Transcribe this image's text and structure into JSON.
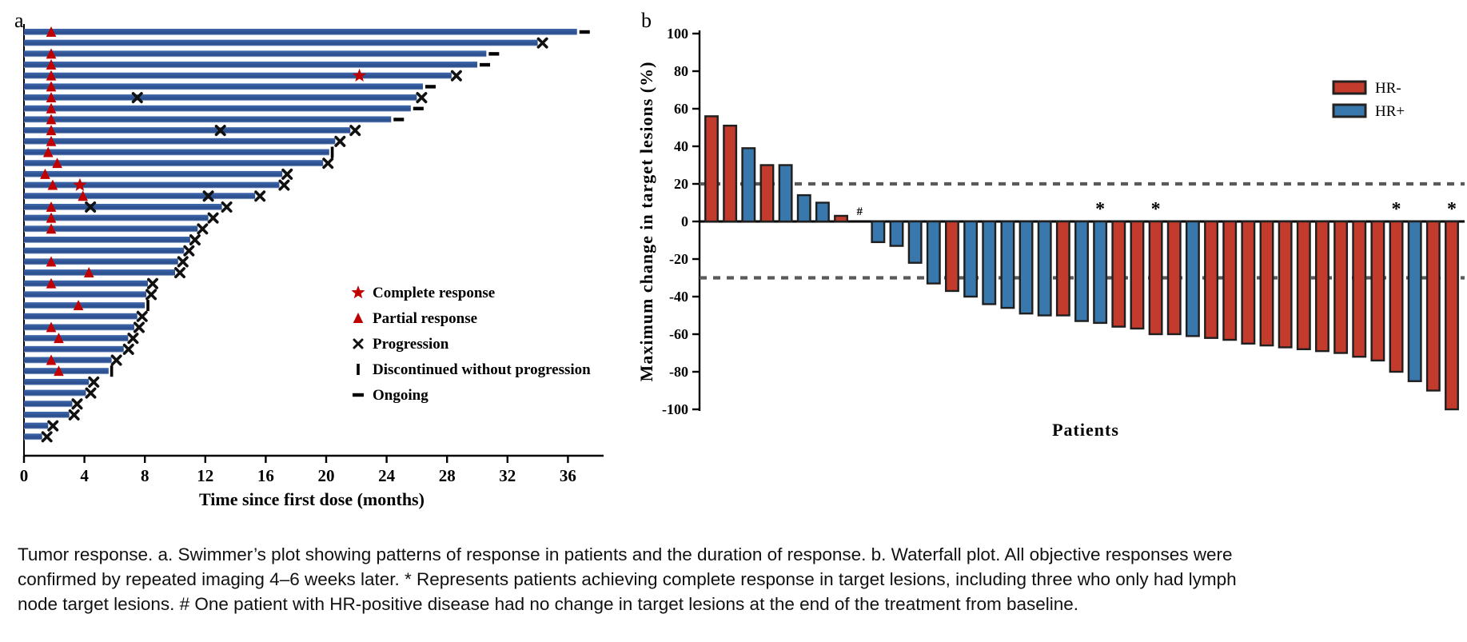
{
  "figure": {
    "panel_a_label": "a",
    "panel_b_label": "b"
  },
  "caption": {
    "text": "Tumor response. a. Swimmer’s plot showing patterns of response in patients and the duration of response. b. Waterfall plot. All objective responses were confirmed by repeated imaging 4–6 weeks later. * Represents patients achieving complete response in target lesions, including three who only had lymph node target lesions. # One patient with HR-positive disease had no change in target lesions at the end of the treatment from baseline."
  },
  "colors": {
    "swimmer_bar_main": "#2d5191",
    "swimmer_bar_light": "#3e68ab",
    "swimmer_bar_bevel": "#cdd8ec",
    "marker_red": "#c00000",
    "marker_black": "#111111",
    "hr_neg_red": "#c23b2c",
    "hr_pos_blue": "#3878ad",
    "bar_stroke": "#1f1f1f",
    "dashed_gray": "#5a5a5a",
    "axis_black": "#000000"
  },
  "chart_data": [
    {
      "type": "bar",
      "name": "swimmer_plot",
      "orientation": "horizontal",
      "xlabel": "Time since first dose (months)",
      "xticks": [
        0,
        4,
        8,
        12,
        16,
        20,
        24,
        28,
        32,
        36
      ],
      "xlim": [
        0,
        38.5
      ],
      "legend": [
        {
          "symbol": "star",
          "label": "Complete response"
        },
        {
          "symbol": "triangle",
          "label": "Partial response"
        },
        {
          "symbol": "x",
          "label": "Progression"
        },
        {
          "symbol": "bar-vertical",
          "label": "Discontinued without progression"
        },
        {
          "symbol": "dash",
          "label": "Ongoing"
        }
      ],
      "bars": [
        {
          "duration": 36.6,
          "end": "ongoing",
          "pr": 1.8,
          "cr": null,
          "x_mid": null
        },
        {
          "duration": 34.0,
          "end": "progression",
          "pr": null,
          "cr": null,
          "x_mid": null
        },
        {
          "duration": 30.6,
          "end": "ongoing",
          "pr": 1.8,
          "cr": null,
          "x_mid": null
        },
        {
          "duration": 30.0,
          "end": "ongoing",
          "pr": 1.8,
          "cr": null,
          "x_mid": null
        },
        {
          "duration": 28.3,
          "end": "progression",
          "pr": 1.8,
          "cr": 22.2,
          "x_mid": null
        },
        {
          "duration": 26.4,
          "end": "ongoing",
          "pr": 1.8,
          "cr": null,
          "x_mid": null
        },
        {
          "duration": 26.0,
          "end": "progression",
          "pr": 1.8,
          "cr": null,
          "x_mid": 7.5
        },
        {
          "duration": 25.6,
          "end": "ongoing",
          "pr": 1.8,
          "cr": null,
          "x_mid": null
        },
        {
          "duration": 24.3,
          "end": "ongoing",
          "pr": 1.8,
          "cr": null,
          "x_mid": null
        },
        {
          "duration": 21.6,
          "end": "progression",
          "pr": 1.8,
          "cr": null,
          "x_mid": 13.0
        },
        {
          "duration": 20.6,
          "end": "progression",
          "pr": 1.8,
          "cr": null,
          "x_mid": null
        },
        {
          "duration": 20.2,
          "end": "discontinued",
          "pr": 1.6,
          "cr": null,
          "x_mid": null
        },
        {
          "duration": 19.8,
          "end": "progression",
          "pr": 2.2,
          "cr": null,
          "x_mid": null
        },
        {
          "duration": 17.1,
          "end": "progression",
          "pr": 1.4,
          "cr": null,
          "x_mid": null
        },
        {
          "duration": 16.9,
          "end": "progression",
          "pr": 1.9,
          "cr": 3.7,
          "x_mid": null
        },
        {
          "duration": 15.3,
          "end": "progression",
          "pr": 3.9,
          "cr": null,
          "x_mid": 12.2
        },
        {
          "duration": 13.1,
          "end": "progression",
          "pr": 1.8,
          "cr": null,
          "x_mid": 4.4
        },
        {
          "duration": 12.2,
          "end": "progression",
          "pr": 1.8,
          "cr": null,
          "x_mid": null
        },
        {
          "duration": 11.5,
          "end": "progression",
          "pr": 1.8,
          "cr": null,
          "x_mid": null
        },
        {
          "duration": 11.0,
          "end": "progression",
          "pr": null,
          "cr": null,
          "x_mid": null
        },
        {
          "duration": 10.6,
          "end": "progression",
          "pr": null,
          "cr": null,
          "x_mid": null
        },
        {
          "duration": 10.2,
          "end": "progression",
          "pr": 1.8,
          "cr": null,
          "x_mid": null
        },
        {
          "duration": 10.0,
          "end": "progression",
          "pr": 4.3,
          "cr": null,
          "x_mid": null
        },
        {
          "duration": 8.2,
          "end": "progression",
          "pr": 1.8,
          "cr": null,
          "x_mid": null
        },
        {
          "duration": 8.1,
          "end": "progression",
          "pr": null,
          "cr": null,
          "x_mid": null
        },
        {
          "duration": 8.0,
          "end": "discontinued",
          "pr": 3.6,
          "cr": null,
          "x_mid": null
        },
        {
          "duration": 7.5,
          "end": "progression",
          "pr": null,
          "cr": null,
          "x_mid": null
        },
        {
          "duration": 7.3,
          "end": "progression",
          "pr": 1.8,
          "cr": null,
          "x_mid": null
        },
        {
          "duration": 6.9,
          "end": "progression",
          "pr": 2.3,
          "cr": null,
          "x_mid": null
        },
        {
          "duration": 6.6,
          "end": "progression",
          "pr": null,
          "cr": null,
          "x_mid": null
        },
        {
          "duration": 5.8,
          "end": "progression",
          "pr": 1.8,
          "cr": null,
          "x_mid": null
        },
        {
          "duration": 5.6,
          "end": "discontinued",
          "pr": 2.3,
          "cr": null,
          "x_mid": null
        },
        {
          "duration": 4.3,
          "end": "progression",
          "pr": null,
          "cr": null,
          "x_mid": null
        },
        {
          "duration": 4.1,
          "end": "progression",
          "pr": null,
          "cr": null,
          "x_mid": null
        },
        {
          "duration": 3.2,
          "end": "progression",
          "pr": null,
          "cr": null,
          "x_mid": null
        },
        {
          "duration": 3.0,
          "end": "progression",
          "pr": null,
          "cr": null,
          "x_mid": null
        },
        {
          "duration": 1.6,
          "end": "progression",
          "pr": null,
          "cr": null,
          "x_mid": null
        },
        {
          "duration": 1.2,
          "end": "progression",
          "pr": null,
          "cr": null,
          "x_mid": null
        }
      ]
    },
    {
      "type": "bar",
      "name": "waterfall_plot",
      "ylabel": "Maximum change in target lesions (%)",
      "xlabel": "Patients",
      "ylim": [
        -100,
        100
      ],
      "yticks": [
        100,
        80,
        60,
        40,
        20,
        0,
        -20,
        -40,
        -60,
        -80,
        -100
      ],
      "reference_lines": [
        20,
        -30
      ],
      "legend": [
        {
          "label": "HR-",
          "group": "HR-"
        },
        {
          "label": "HR+",
          "group": "HR+"
        }
      ],
      "bars": [
        {
          "value": 56,
          "group": "HR-",
          "annotation": null
        },
        {
          "value": 51,
          "group": "HR-",
          "annotation": null
        },
        {
          "value": 39,
          "group": "HR+",
          "annotation": null
        },
        {
          "value": 30,
          "group": "HR-",
          "annotation": null
        },
        {
          "value": 30,
          "group": "HR+",
          "annotation": null
        },
        {
          "value": 14,
          "group": "HR+",
          "annotation": null
        },
        {
          "value": 10,
          "group": "HR+",
          "annotation": null
        },
        {
          "value": 3,
          "group": "HR-",
          "annotation": null
        },
        {
          "value": 0,
          "group": "HR+",
          "annotation": "#"
        },
        {
          "value": -11,
          "group": "HR+",
          "annotation": null
        },
        {
          "value": -13,
          "group": "HR+",
          "annotation": null
        },
        {
          "value": -22,
          "group": "HR+",
          "annotation": null
        },
        {
          "value": -33,
          "group": "HR+",
          "annotation": null
        },
        {
          "value": -37,
          "group": "HR-",
          "annotation": null
        },
        {
          "value": -40,
          "group": "HR+",
          "annotation": null
        },
        {
          "value": -44,
          "group": "HR+",
          "annotation": null
        },
        {
          "value": -46,
          "group": "HR+",
          "annotation": null
        },
        {
          "value": -49,
          "group": "HR+",
          "annotation": null
        },
        {
          "value": -50,
          "group": "HR+",
          "annotation": null
        },
        {
          "value": -50,
          "group": "HR-",
          "annotation": null
        },
        {
          "value": -53,
          "group": "HR+",
          "annotation": null
        },
        {
          "value": -54,
          "group": "HR+",
          "annotation": "*"
        },
        {
          "value": -56,
          "group": "HR-",
          "annotation": null
        },
        {
          "value": -57,
          "group": "HR-",
          "annotation": null
        },
        {
          "value": -60,
          "group": "HR-",
          "annotation": "*"
        },
        {
          "value": -60,
          "group": "HR-",
          "annotation": null
        },
        {
          "value": -61,
          "group": "HR+",
          "annotation": null
        },
        {
          "value": -62,
          "group": "HR-",
          "annotation": null
        },
        {
          "value": -63,
          "group": "HR-",
          "annotation": null
        },
        {
          "value": -65,
          "group": "HR-",
          "annotation": null
        },
        {
          "value": -66,
          "group": "HR-",
          "annotation": null
        },
        {
          "value": -67,
          "group": "HR-",
          "annotation": null
        },
        {
          "value": -68,
          "group": "HR-",
          "annotation": null
        },
        {
          "value": -69,
          "group": "HR-",
          "annotation": null
        },
        {
          "value": -70,
          "group": "HR-",
          "annotation": null
        },
        {
          "value": -72,
          "group": "HR-",
          "annotation": null
        },
        {
          "value": -74,
          "group": "HR-",
          "annotation": null
        },
        {
          "value": -80,
          "group": "HR-",
          "annotation": "*"
        },
        {
          "value": -85,
          "group": "HR+",
          "annotation": null
        },
        {
          "value": -90,
          "group": "HR-",
          "annotation": null
        },
        {
          "value": -100,
          "group": "HR-",
          "annotation": "*"
        }
      ]
    }
  ]
}
